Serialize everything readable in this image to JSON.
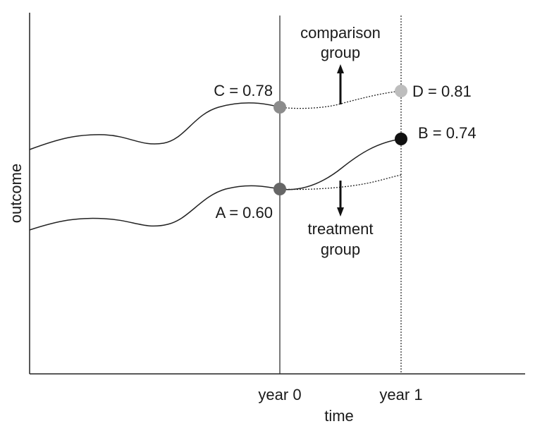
{
  "diagram": {
    "axes": {
      "ylabel": "outcome",
      "xlabel": "time"
    },
    "ticks": [
      "year 0",
      "year 1"
    ],
    "points": {
      "A": {
        "label": "A = 0.60",
        "value": 0.6,
        "color": "#666666"
      },
      "B": {
        "label": "B = 0.74",
        "value": 0.74,
        "color": "#111111"
      },
      "C": {
        "label": "C = 0.78",
        "value": 0.78,
        "color": "#8c8c8c"
      },
      "D": {
        "label": "D = 0.81",
        "value": 0.81,
        "color": "#bdbdbd"
      }
    },
    "annotations": {
      "comparison": [
        "comparison",
        "group"
      ],
      "treatment": [
        "treatment",
        "group"
      ]
    }
  }
}
